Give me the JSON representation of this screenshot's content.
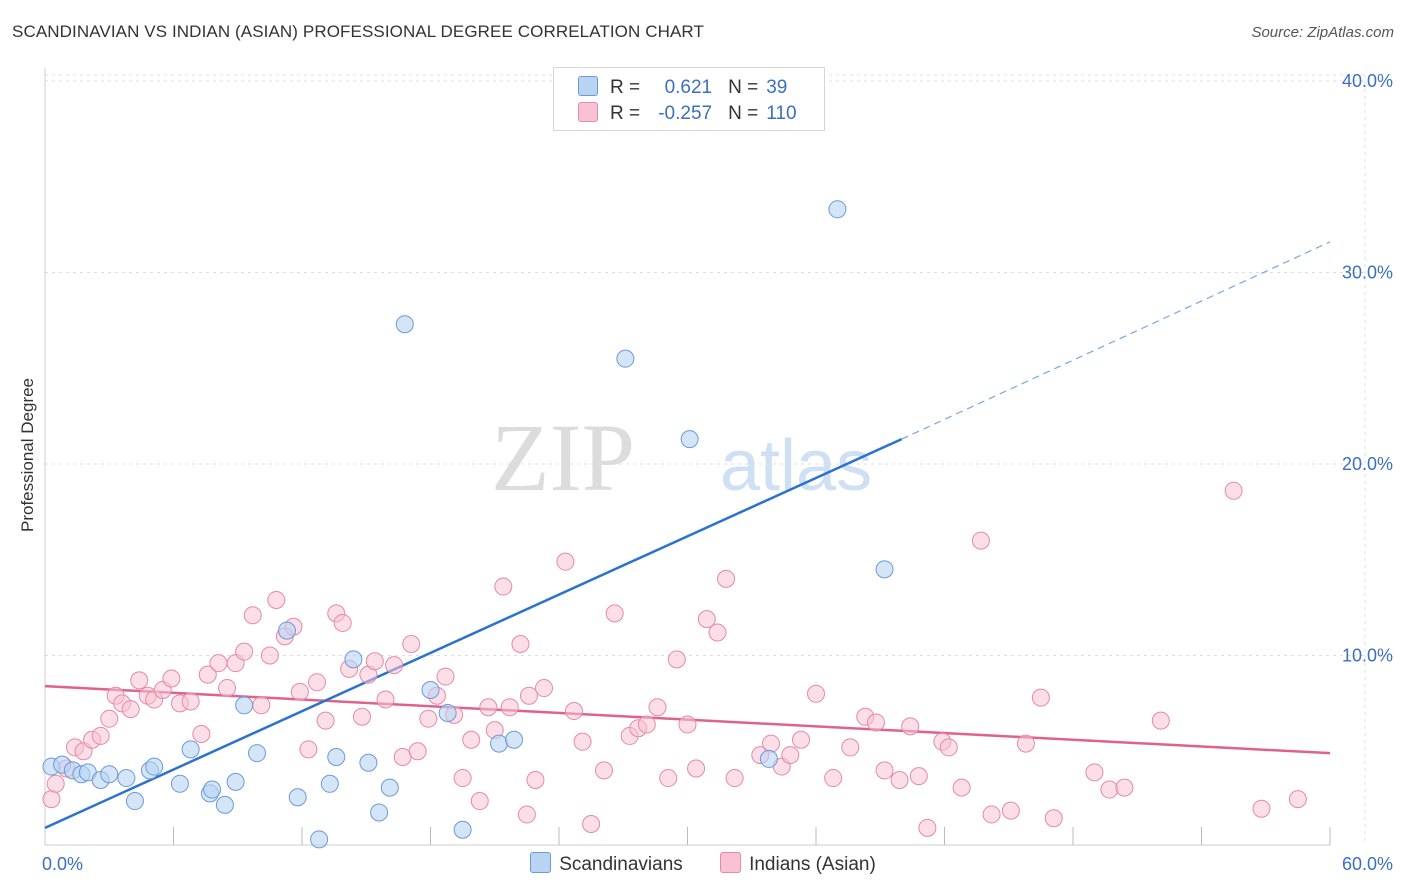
{
  "title": "SCANDINAVIAN VS INDIAN (ASIAN) PROFESSIONAL DEGREE CORRELATION CHART",
  "source": "Source: ZipAtlas.com",
  "watermark": {
    "zip": "ZIP",
    "atlas": "atlas"
  },
  "legend": {
    "r_label": "R =",
    "n_label": "N =",
    "rows": [
      {
        "r": "0.621",
        "n": "39"
      },
      {
        "r": "-0.257",
        "n": "110"
      }
    ]
  },
  "colors": {
    "blue_fill": "#b9d3f3",
    "blue_stroke": "#6a9ad8",
    "blue_line": "#2a72d0",
    "pink_fill": "#f8c2d3",
    "pink_stroke": "#e58aa7",
    "pink_line": "#e0628c",
    "tick_text": "#3a6fc4",
    "grid": "#dddddd"
  },
  "chart_data": {
    "type": "scatter",
    "title": "SCANDINAVIAN VS INDIAN (ASIAN) PROFESSIONAL DEGREE CORRELATION CHART",
    "xlabel": "",
    "ylabel": "Professional Degree",
    "xlim": [
      0,
      60
    ],
    "ylim": [
      0,
      40
    ],
    "x_tick_labels": [
      "0.0%",
      "60.0%"
    ],
    "y_ticks": [
      10,
      20,
      30,
      40
    ],
    "y_tick_labels": [
      "10.0%",
      "20.0%",
      "30.0%",
      "40.0%"
    ],
    "grid": true,
    "legend_position": "bottom",
    "series": [
      {
        "name": "Scandinavians",
        "r": 0.621,
        "n": 39,
        "points": [
          [
            0.3,
            4.2
          ],
          [
            0.8,
            4.3
          ],
          [
            1.3,
            4.0
          ],
          [
            1.7,
            3.8
          ],
          [
            2.0,
            3.9
          ],
          [
            2.6,
            3.5
          ],
          [
            3.8,
            3.6
          ],
          [
            3.0,
            3.8
          ],
          [
            4.2,
            2.4
          ],
          [
            4.9,
            4.0
          ],
          [
            5.1,
            4.2
          ],
          [
            6.3,
            3.3
          ],
          [
            6.8,
            5.1
          ],
          [
            7.7,
            2.8
          ],
          [
            7.8,
            3.0
          ],
          [
            8.4,
            2.2
          ],
          [
            8.9,
            3.4
          ],
          [
            9.3,
            7.4
          ],
          [
            9.9,
            4.9
          ],
          [
            11.3,
            11.3
          ],
          [
            11.8,
            2.6
          ],
          [
            12.8,
            0.4
          ],
          [
            13.3,
            3.3
          ],
          [
            13.6,
            4.7
          ],
          [
            14.4,
            9.8
          ],
          [
            15.1,
            4.4
          ],
          [
            15.6,
            1.8
          ],
          [
            16.1,
            3.1
          ],
          [
            16.8,
            27.3
          ],
          [
            18.0,
            8.2
          ],
          [
            18.8,
            7.0
          ],
          [
            19.5,
            0.9
          ],
          [
            21.2,
            5.4
          ],
          [
            21.9,
            5.6
          ],
          [
            27.1,
            25.5
          ],
          [
            30.1,
            21.3
          ],
          [
            33.8,
            4.6
          ],
          [
            37.0,
            33.3
          ],
          [
            39.2,
            14.5
          ]
        ],
        "trend": {
          "x0": 0,
          "y0": 1.0,
          "x1": 40,
          "y1": 21.3,
          "dash_x1": 60,
          "dash_y1": 31.6
        }
      },
      {
        "name": "Indians (Asian)",
        "r": -0.257,
        "n": 110,
        "points": [
          [
            0.3,
            2.5
          ],
          [
            0.5,
            3.3
          ],
          [
            1.0,
            4.1
          ],
          [
            1.4,
            5.2
          ],
          [
            1.8,
            5.0
          ],
          [
            2.2,
            5.6
          ],
          [
            2.6,
            5.8
          ],
          [
            3.0,
            6.7
          ],
          [
            3.3,
            7.9
          ],
          [
            3.6,
            7.5
          ],
          [
            4.0,
            7.2
          ],
          [
            4.4,
            8.7
          ],
          [
            4.8,
            7.9
          ],
          [
            5.1,
            7.7
          ],
          [
            5.5,
            8.2
          ],
          [
            5.9,
            8.8
          ],
          [
            6.3,
            7.5
          ],
          [
            6.8,
            7.6
          ],
          [
            7.3,
            5.9
          ],
          [
            7.6,
            9.0
          ],
          [
            8.1,
            9.6
          ],
          [
            8.5,
            8.3
          ],
          [
            8.9,
            9.6
          ],
          [
            9.3,
            10.2
          ],
          [
            9.7,
            12.1
          ],
          [
            10.1,
            7.4
          ],
          [
            10.5,
            10.0
          ],
          [
            10.8,
            12.9
          ],
          [
            11.2,
            11.0
          ],
          [
            11.6,
            11.5
          ],
          [
            11.9,
            8.1
          ],
          [
            12.3,
            5.1
          ],
          [
            12.7,
            8.6
          ],
          [
            13.1,
            6.6
          ],
          [
            13.6,
            12.2
          ],
          [
            13.9,
            11.7
          ],
          [
            14.2,
            9.3
          ],
          [
            14.8,
            6.8
          ],
          [
            15.1,
            9.0
          ],
          [
            15.4,
            9.7
          ],
          [
            15.9,
            7.7
          ],
          [
            16.3,
            9.5
          ],
          [
            16.7,
            4.7
          ],
          [
            17.1,
            10.6
          ],
          [
            17.4,
            5.0
          ],
          [
            17.9,
            6.7
          ],
          [
            18.3,
            7.9
          ],
          [
            18.7,
            8.9
          ],
          [
            19.1,
            6.9
          ],
          [
            19.5,
            3.6
          ],
          [
            19.9,
            5.6
          ],
          [
            20.3,
            2.4
          ],
          [
            20.7,
            7.3
          ],
          [
            21.0,
            6.1
          ],
          [
            21.4,
            13.6
          ],
          [
            21.7,
            7.3
          ],
          [
            22.2,
            10.6
          ],
          [
            22.6,
            7.9
          ],
          [
            22.9,
            3.5
          ],
          [
            23.3,
            8.3
          ],
          [
            24.3,
            14.9
          ],
          [
            24.7,
            7.1
          ],
          [
            25.1,
            5.5
          ],
          [
            25.5,
            1.2
          ],
          [
            26.1,
            4.0
          ],
          [
            26.6,
            12.2
          ],
          [
            27.3,
            5.8
          ],
          [
            27.7,
            6.2
          ],
          [
            28.1,
            6.4
          ],
          [
            28.6,
            7.3
          ],
          [
            29.1,
            3.6
          ],
          [
            29.5,
            9.8
          ],
          [
            30.0,
            6.4
          ],
          [
            30.4,
            4.1
          ],
          [
            30.9,
            11.9
          ],
          [
            31.4,
            11.2
          ],
          [
            31.8,
            14.0
          ],
          [
            32.2,
            3.6
          ],
          [
            33.4,
            4.8
          ],
          [
            33.9,
            5.4
          ],
          [
            34.4,
            4.2
          ],
          [
            34.8,
            4.8
          ],
          [
            35.3,
            5.6
          ],
          [
            36.0,
            8.0
          ],
          [
            36.8,
            3.6
          ],
          [
            37.6,
            5.2
          ],
          [
            38.3,
            6.8
          ],
          [
            38.8,
            6.5
          ],
          [
            39.2,
            4.0
          ],
          [
            39.9,
            3.5
          ],
          [
            40.4,
            6.3
          ],
          [
            40.8,
            3.7
          ],
          [
            41.2,
            1.0
          ],
          [
            41.9,
            5.5
          ],
          [
            42.2,
            5.2
          ],
          [
            42.8,
            3.1
          ],
          [
            43.7,
            16.0
          ],
          [
            44.2,
            1.7
          ],
          [
            45.1,
            1.9
          ],
          [
            45.8,
            5.4
          ],
          [
            46.5,
            7.8
          ],
          [
            47.1,
            1.5
          ],
          [
            49.0,
            3.9
          ],
          [
            49.7,
            3.0
          ],
          [
            50.4,
            3.1
          ],
          [
            52.1,
            6.6
          ],
          [
            55.5,
            18.6
          ],
          [
            56.8,
            2.0
          ],
          [
            58.5,
            2.5
          ],
          [
            22.5,
            1.7
          ]
        ],
        "trend": {
          "x0": 0,
          "y0": 8.4,
          "x1": 60,
          "y1": 4.9
        }
      }
    ]
  }
}
